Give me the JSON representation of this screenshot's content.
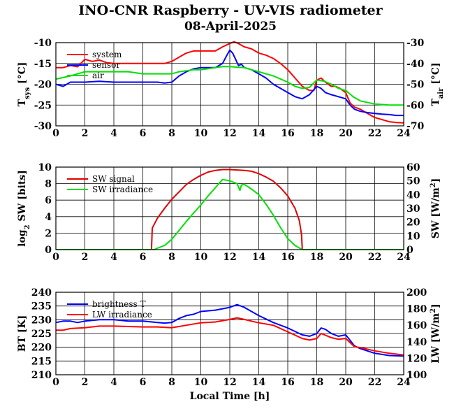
{
  "header": {
    "title": "INO-CNR Raspberry - UV-VIS radiometer",
    "date": "08-April-2025"
  },
  "chart_data": [
    {
      "type": "line",
      "id": "temperature",
      "ylabel_left": {
        "main": "T",
        "sub": "sys",
        "unit": " [°C]"
      },
      "ylabel_right": {
        "main": "T",
        "sub": "air",
        "unit": " [°C]"
      },
      "xlim": [
        0,
        24
      ],
      "ylim_left": [
        -30,
        -10
      ],
      "ylim_right": [
        -70,
        -30
      ],
      "xticks": [
        0,
        2,
        4,
        6,
        8,
        10,
        12,
        14,
        16,
        18,
        20,
        22,
        24
      ],
      "yticks_left": [
        -30,
        -25,
        -20,
        -15,
        -10
      ],
      "yticks_right": [
        -70,
        -60,
        -50,
        -40,
        -30
      ],
      "grid": true,
      "legend_placement": "top-left",
      "series": [
        {
          "name": "system",
          "color": "#ff0000",
          "axis": "left",
          "x": [
            0,
            0.5,
            1,
            1.5,
            2,
            2.5,
            3,
            3.5,
            4,
            5,
            6,
            7,
            7.5,
            8,
            8.5,
            9,
            9.5,
            10,
            10.5,
            11,
            11.5,
            12,
            12.3,
            12.6,
            13,
            13.5,
            14,
            14.5,
            15,
            15.5,
            16,
            16.5,
            17,
            17.5,
            17.8,
            18,
            18.3,
            18.6,
            19,
            19.3,
            19.6,
            20,
            20.3,
            20.6,
            21,
            21.5,
            22,
            22.5,
            23,
            23.5,
            24
          ],
          "y": [
            -16,
            -16,
            -15.5,
            -15.8,
            -14,
            -14.5,
            -14.2,
            -14.8,
            -15,
            -15,
            -15,
            -15,
            -15,
            -14.5,
            -13.5,
            -12.5,
            -12,
            -12,
            -12,
            -12,
            -11,
            -10.2,
            -9.8,
            -10.2,
            -11,
            -11.5,
            -12.5,
            -13,
            -13.8,
            -15,
            -16.5,
            -18.5,
            -20.5,
            -21.5,
            -21.5,
            -19,
            -18.5,
            -19.5,
            -20.5,
            -20.5,
            -21,
            -22,
            -24.5,
            -25.5,
            -26,
            -27,
            -28,
            -28.5,
            -29,
            -29.2,
            -29.3
          ]
        },
        {
          "name": "sensor",
          "color": "#0000ff",
          "axis": "left",
          "x": [
            0,
            0.5,
            1,
            2,
            3,
            4,
            5,
            6,
            7,
            7.5,
            8,
            8.5,
            9,
            9.5,
            10,
            10.5,
            11,
            11.5,
            11.8,
            12,
            12.2,
            12.4,
            12.6,
            12.8,
            13,
            13.5,
            14,
            14.5,
            15,
            15.5,
            16,
            16.5,
            17,
            17.5,
            18,
            18.3,
            18.6,
            19,
            19.5,
            20,
            20.3,
            20.6,
            21,
            21.5,
            22,
            22.5,
            23,
            23.5,
            24
          ],
          "y": [
            -20,
            -20.5,
            -19.5,
            -19.5,
            -19.3,
            -19.5,
            -19.5,
            -19.5,
            -19.5,
            -19.7,
            -19.5,
            -18,
            -17,
            -16.3,
            -16,
            -16,
            -16,
            -15,
            -13,
            -11.8,
            -12.5,
            -14,
            -15.5,
            -15.2,
            -16,
            -16.5,
            -17.5,
            -18.5,
            -20,
            -21,
            -22,
            -23,
            -23.5,
            -22.5,
            -20.5,
            -21,
            -22,
            -22.5,
            -23,
            -23.5,
            -25,
            -26,
            -26.5,
            -26.8,
            -27,
            -27.2,
            -27.3,
            -27.5,
            -27.5
          ]
        },
        {
          "name": "air",
          "color": "#00e000",
          "axis": "right",
          "x": [
            0,
            1,
            2,
            3,
            4,
            5,
            6,
            7,
            8,
            8.5,
            9,
            9.5,
            10,
            10.5,
            11,
            11.5,
            12,
            12.5,
            13,
            13.5,
            14,
            15,
            16,
            16.5,
            17,
            17.5,
            18,
            18.5,
            19,
            19.5,
            20,
            20.5,
            21,
            22,
            23,
            24
          ],
          "y": [
            -47.5,
            -46,
            -44,
            -44,
            -44,
            -44,
            -45,
            -45,
            -45,
            -44,
            -43.5,
            -43,
            -43,
            -42.5,
            -42,
            -41.5,
            -41.5,
            -41.8,
            -42,
            -43,
            -44,
            -46,
            -49,
            -51,
            -52,
            -51.5,
            -48,
            -48.5,
            -50,
            -52,
            -53,
            -56,
            -58,
            -59.5,
            -60,
            -60
          ]
        }
      ]
    },
    {
      "type": "line",
      "id": "shortwave",
      "ylabel_left": {
        "pre": "log",
        "sub": "2",
        "post": " SW [bits]"
      },
      "ylabel_right": {
        "pre": "SW [W/m",
        "sup": "2",
        "post": "]"
      },
      "xlim": [
        0,
        24
      ],
      "ylim_left": [
        0,
        10
      ],
      "ylim_right": [
        0,
        60
      ],
      "xticks": [
        0,
        2,
        4,
        6,
        8,
        10,
        12,
        14,
        16,
        18,
        20,
        22,
        24
      ],
      "yticks_left": [
        0,
        2,
        4,
        6,
        8,
        10
      ],
      "yticks_right": [
        0,
        10,
        20,
        30,
        40,
        50,
        60
      ],
      "grid": true,
      "legend_placement": "top-left",
      "series": [
        {
          "name": "SW signal",
          "color": "#e00000",
          "axis": "left",
          "x": [
            0,
            6,
            6.6,
            6.65,
            7,
            7.5,
            8,
            8.5,
            9,
            9.5,
            10,
            10.5,
            11,
            11.5,
            12,
            12.5,
            13,
            13.5,
            14,
            14.5,
            15,
            15.5,
            16,
            16.5,
            16.8,
            16.95,
            17,
            24
          ],
          "y": [
            0,
            0,
            0,
            2.6,
            3.8,
            5,
            6.1,
            7,
            7.9,
            8.5,
            9,
            9.4,
            9.6,
            9.7,
            9.7,
            9.65,
            9.6,
            9.5,
            9.2,
            8.8,
            8.3,
            7.5,
            6.5,
            5,
            3.5,
            1.8,
            0,
            0
          ]
        },
        {
          "name": "SW irradiance",
          "color": "#00e000",
          "axis": "right",
          "x": [
            0,
            6.8,
            7,
            7.5,
            8,
            8.5,
            9,
            9.5,
            10,
            10.5,
            11,
            11.5,
            12,
            12.5,
            12.7,
            12.8,
            13,
            13.5,
            14,
            14.5,
            15,
            15.5,
            16,
            16.5,
            17,
            24
          ],
          "y": [
            0,
            0,
            1,
            3,
            7.5,
            14,
            20.5,
            26.5,
            32.5,
            39,
            45,
            51,
            50,
            48,
            43,
            47,
            47.5,
            44,
            40,
            33,
            25,
            16,
            8,
            3,
            0,
            0
          ]
        }
      ]
    },
    {
      "type": "line",
      "id": "longwave",
      "ylabel_left": {
        "pre": "BT [K]"
      },
      "ylabel_right": {
        "pre": "LW [W/m",
        "sup": "2",
        "post": "]"
      },
      "xlabel": "Local Time [h]",
      "xlim": [
        0,
        24
      ],
      "ylim_left": [
        210,
        240
      ],
      "ylim_right": [
        100,
        200
      ],
      "xticks": [
        0,
        2,
        4,
        6,
        8,
        10,
        12,
        14,
        16,
        18,
        20,
        22,
        24
      ],
      "yticks_left": [
        210,
        215,
        220,
        225,
        230,
        235,
        240
      ],
      "yticks_right": [
        100,
        120,
        140,
        160,
        180,
        200
      ],
      "grid": true,
      "legend_placement": "top-left",
      "series": [
        {
          "name": "brightness T",
          "color": "#0000ff",
          "axis": "left",
          "x": [
            0,
            0.5,
            1,
            1.5,
            2,
            3,
            4,
            5,
            6,
            7,
            7.5,
            8,
            8.5,
            9,
            9.5,
            10,
            11,
            12,
            12.5,
            13,
            13.5,
            14,
            15,
            16,
            17,
            17.5,
            18,
            18.3,
            18.6,
            19,
            19.5,
            20,
            20.3,
            20.6,
            21,
            22,
            23,
            24
          ],
          "y": [
            229,
            229.5,
            229.5,
            229,
            229.5,
            230,
            230,
            229.5,
            229.5,
            229,
            228.8,
            229,
            230.5,
            231.5,
            232,
            233,
            233.5,
            234.5,
            235.5,
            234.5,
            233,
            231.5,
            229,
            227,
            224.5,
            224,
            225,
            227,
            226.5,
            225,
            224,
            224.5,
            222.5,
            220.5,
            219.5,
            217.8,
            217,
            216.8
          ]
        },
        {
          "name": "LW irradiance",
          "color": "#ff0000",
          "axis": "right",
          "x": [
            0,
            0.5,
            1,
            2,
            3,
            4,
            5,
            6,
            7,
            8,
            9,
            10,
            11,
            12,
            12.5,
            13,
            13.5,
            14,
            15,
            16,
            17,
            17.5,
            18,
            18.3,
            18.6,
            19,
            19.5,
            20,
            20.3,
            20.6,
            21,
            22,
            23,
            24
          ],
          "y": [
            154,
            154,
            156,
            157,
            159,
            159,
            158.5,
            158,
            158,
            157,
            160,
            163,
            164,
            167,
            169,
            167,
            165,
            163,
            160,
            152,
            144,
            142,
            144,
            150,
            148,
            145,
            143,
            144,
            139,
            134,
            133,
            129,
            126,
            124
          ]
        }
      ]
    }
  ]
}
